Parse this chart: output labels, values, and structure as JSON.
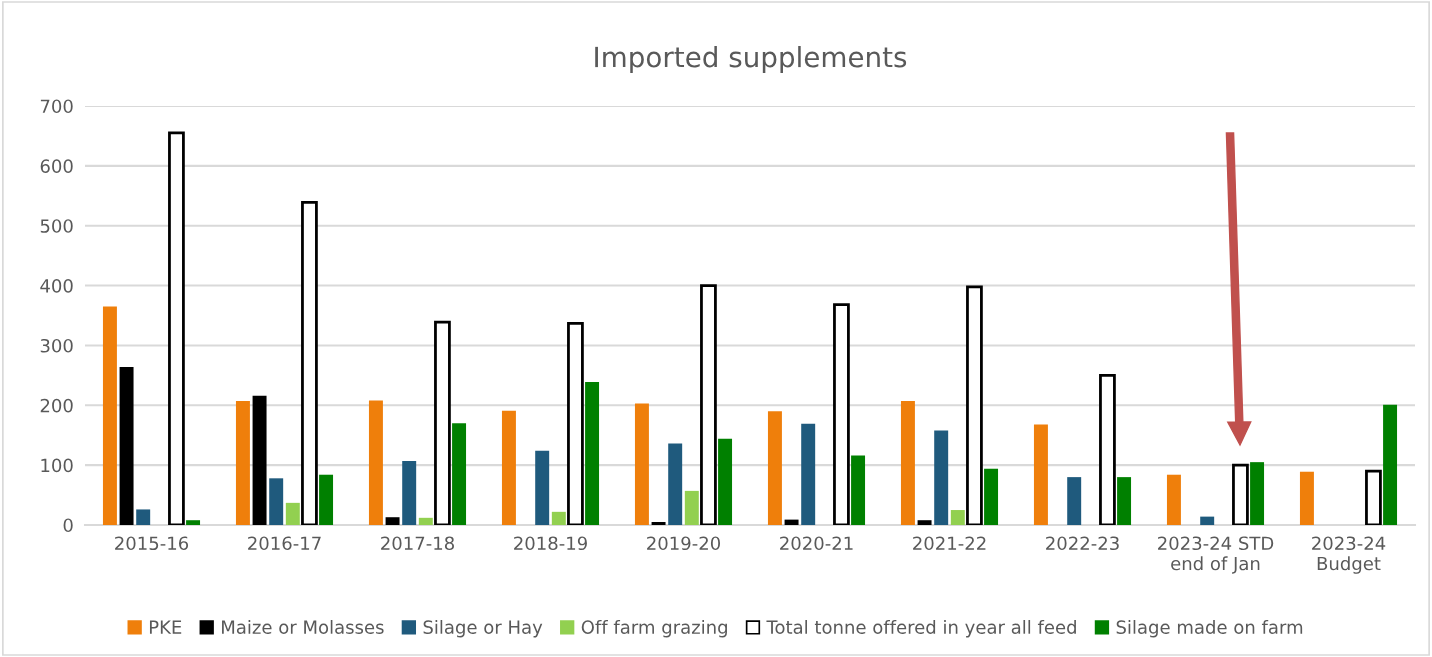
{
  "chart_data": {
    "type": "bar",
    "title": "Imported supplements",
    "categories": [
      "2015-16",
      "2016-17",
      "2017-18",
      "2018-19",
      "2019-20",
      "2020-21",
      "2021-22",
      "2022-23",
      "2023-24 STD\nend of Jan",
      "2023-24\nBudget"
    ],
    "series": [
      {
        "name": "PKE",
        "color": "#ef7f0b",
        "values": [
          365,
          207,
          208,
          191,
          203,
          190,
          207,
          168,
          84,
          89
        ]
      },
      {
        "name": "Maize or Molasses",
        "color": "#000000",
        "values": [
          264,
          216,
          13,
          null,
          5,
          9,
          8,
          null,
          null,
          null
        ]
      },
      {
        "name": "Silage or Hay",
        "color": "#1f5a7d",
        "values": [
          26,
          78,
          107,
          124,
          136,
          169,
          158,
          80,
          14,
          null
        ]
      },
      {
        "name": "Off farm grazing",
        "color": "#92d050",
        "values": [
          null,
          37,
          12,
          22,
          57,
          null,
          25,
          null,
          null,
          null
        ]
      },
      {
        "name": "Total tonne offered in year all feed",
        "color": "#ffffff",
        "values": [
          655,
          539,
          339,
          337,
          400,
          368,
          398,
          250,
          100,
          90
        ]
      },
      {
        "name": "Silage made on farm",
        "color": "#008000",
        "values": [
          8,
          84,
          170,
          239,
          144,
          116,
          94,
          80,
          105,
          201
        ]
      }
    ],
    "ylim": [
      0,
      700
    ],
    "yticks": [
      0,
      100,
      200,
      300,
      400,
      500,
      600,
      700
    ],
    "grid": "y",
    "legend": "bottom"
  }
}
